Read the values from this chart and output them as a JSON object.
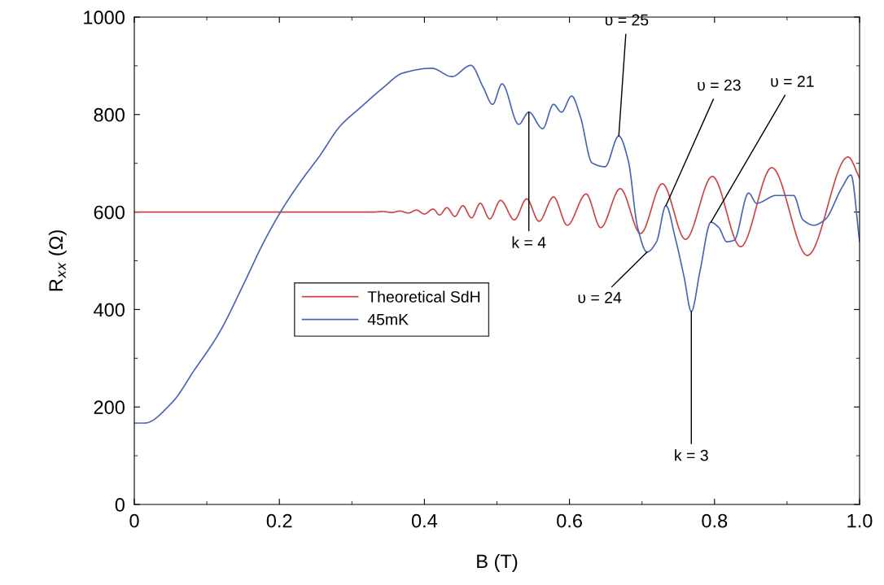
{
  "chart_data": {
    "type": "line",
    "xlabel": "B (T)",
    "ylabel": "R$_{xx}$ (Ω)",
    "xlim": [
      0,
      1
    ],
    "xticks": [
      0,
      0.2,
      0.4,
      0.6,
      0.8,
      {
        "value": 1,
        "label": "1.0"
      }
    ],
    "ylim": [
      0,
      1000
    ],
    "yticks": [
      0,
      200,
      400,
      600,
      800,
      1000
    ],
    "grid": false,
    "legend": "left",
    "marker": "none",
    "line_style": "solid",
    "series": [
      {
        "name": "Theoretical SdH",
        "color": "#cc4444",
        "x": [
          0,
          0.3,
          0.33,
          0.343,
          0.355,
          0.366,
          0.378,
          0.389,
          0.4,
          0.412,
          0.421,
          0.431,
          0.442,
          0.453,
          0.465,
          0.477,
          0.49,
          0.505,
          0.524,
          0.541,
          0.558,
          0.578,
          0.597,
          0.623,
          0.643,
          0.67,
          0.698,
          0.728,
          0.76,
          0.797,
          0.836,
          0.879,
          0.928,
          0.984,
          1.0
        ],
        "values": [
          600,
          600,
          600,
          601,
          599,
          602,
          598,
          604,
          596,
          606,
          594,
          609,
          591,
          613,
          588,
          618,
          586,
          624,
          584,
          627,
          581,
          631,
          573,
          637,
          568,
          648,
          556,
          658,
          544,
          673,
          529,
          691,
          511,
          713,
          670
        ]
      },
      {
        "name": "45mK",
        "color": "#4a64b4",
        "x": [
          0,
          0.014,
          0.052,
          0.082,
          0.117,
          0.152,
          0.177,
          0.204,
          0.23,
          0.256,
          0.283,
          0.313,
          0.343,
          0.37,
          0.41,
          0.438,
          0.464,
          0.481,
          0.494,
          0.507,
          0.53,
          0.544,
          0.563,
          0.578,
          0.589,
          0.603,
          0.615,
          0.631,
          0.649,
          0.668,
          0.681,
          0.694,
          0.707,
          0.72,
          0.733,
          0.746,
          0.758,
          0.768,
          0.78,
          0.795,
          0.806,
          0.817,
          0.827,
          0.847,
          0.858,
          0.885,
          0.909,
          0.922,
          0.937,
          0.952,
          0.976,
          0.988,
          1.0
        ],
        "values": [
          167,
          167,
          209,
          274,
          352,
          456,
          534,
          606,
          664,
          716,
          775,
          816,
          855,
          885,
          895,
          878,
          901,
          856,
          821,
          863,
          780,
          805,
          771,
          821,
          805,
          838,
          796,
          701,
          693,
          756,
          706,
          568,
          518,
          539,
          613,
          546,
          467,
          396,
          479,
          579,
          568,
          539,
          542,
          639,
          618,
          634,
          634,
          584,
          573,
          584,
          651,
          676,
          540
        ]
      }
    ],
    "annotations": [
      {
        "text": "υ = 25",
        "x": 0.668,
        "y": 756
      },
      {
        "text": "k = 4",
        "x": 0.544,
        "y": 805
      },
      {
        "text": "υ = 23",
        "x": 0.733,
        "y": 613
      },
      {
        "text": "υ = 21",
        "x": 0.795,
        "y": 579
      },
      {
        "text": "υ = 24",
        "x": 0.707,
        "y": 518
      },
      {
        "text": "k = 3",
        "x": 0.768,
        "y": 396
      }
    ]
  }
}
